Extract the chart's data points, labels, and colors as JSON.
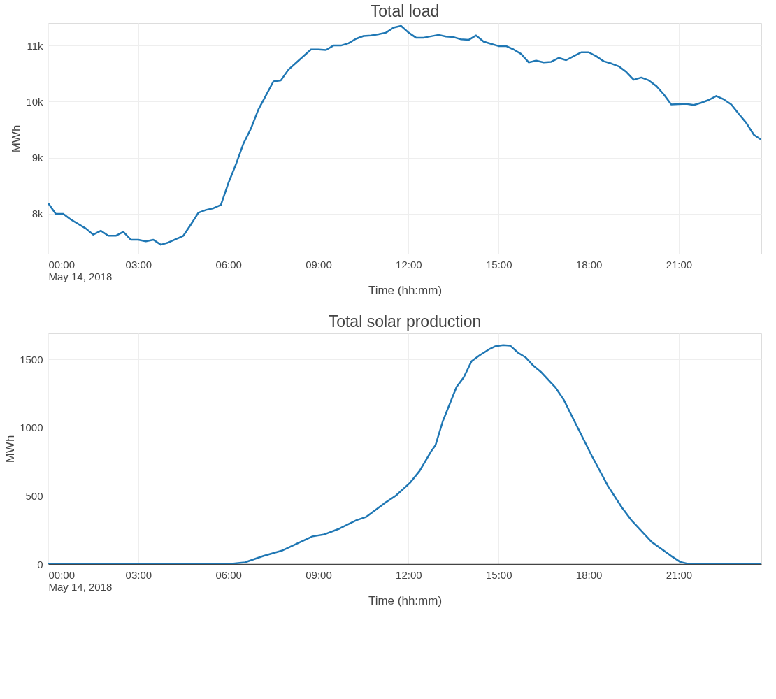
{
  "chart_data": [
    {
      "type": "line",
      "title": "Total load",
      "xlabel": "Time (hh:mm)",
      "ylabel": "MWh",
      "grid": true,
      "line_style": "solid",
      "xlim": [
        0,
        23.75
      ],
      "ylim": [
        7290,
        11400
      ],
      "xticks": [
        {
          "value": 0,
          "label": "00:00\nMay 14, 2018"
        },
        {
          "value": 3,
          "label": "03:00"
        },
        {
          "value": 6,
          "label": "06:00"
        },
        {
          "value": 9,
          "label": "09:00"
        },
        {
          "value": 12,
          "label": "12:00"
        },
        {
          "value": 15,
          "label": "15:00"
        },
        {
          "value": 18,
          "label": "18:00"
        },
        {
          "value": 21,
          "label": "21:00"
        }
      ],
      "yticks": [
        {
          "value": 8000,
          "label": "8k"
        },
        {
          "value": 9000,
          "label": "9k"
        },
        {
          "value": 10000,
          "label": "10k"
        },
        {
          "value": 11000,
          "label": "11k"
        }
      ],
      "series": [
        {
          "color": "#1f77b4",
          "x": [
            0,
            0.25,
            0.5,
            0.75,
            1.25,
            1.5,
            1.75,
            2,
            2.25,
            2.5,
            2.75,
            3,
            3.25,
            3.5,
            3.75,
            4,
            4.5,
            4.75,
            5,
            5.25,
            5.5,
            5.75,
            6,
            6.25,
            6.5,
            6.75,
            7,
            7.25,
            7.5,
            7.75,
            8,
            8.25,
            8.75,
            9,
            9.25,
            9.5,
            9.75,
            10,
            10.25,
            10.5,
            10.75,
            11,
            11.25,
            11.5,
            11.75,
            12,
            12.25,
            12.5,
            13,
            13.25,
            13.5,
            13.75,
            14,
            14.25,
            14.5,
            14.75,
            15,
            15.25,
            15.5,
            15.75,
            16,
            16.25,
            16.5,
            16.75,
            17,
            17.25,
            17.5,
            17.75,
            18,
            18.25,
            18.5,
            18.75,
            19,
            19.25,
            19.5,
            19.75,
            20,
            20.25,
            20.5,
            20.75,
            21.25,
            21.5,
            21.75,
            22,
            22.25,
            22.5,
            22.75,
            23,
            23.25,
            23.5,
            23.75
          ],
          "values": [
            8190,
            8000,
            8000,
            7900,
            7740,
            7630,
            7700,
            7610,
            7610,
            7680,
            7540,
            7540,
            7510,
            7540,
            7450,
            7490,
            7610,
            7810,
            8020,
            8070,
            8100,
            8160,
            8550,
            8880,
            9250,
            9520,
            9860,
            10110,
            10360,
            10380,
            10570,
            10690,
            10930,
            10930,
            10920,
            11000,
            11000,
            11040,
            11120,
            11170,
            11180,
            11200,
            11230,
            11320,
            11350,
            11230,
            11140,
            11140,
            11190,
            11160,
            11150,
            11110,
            11100,
            11180,
            11070,
            11030,
            10990,
            10990,
            10930,
            10850,
            10700,
            10730,
            10700,
            10710,
            10780,
            10740,
            10810,
            10880,
            10880,
            10810,
            10720,
            10680,
            10630,
            10530,
            10390,
            10430,
            10380,
            10280,
            10130,
            9950,
            9960,
            9940,
            9980,
            10030,
            10100,
            10040,
            9950,
            9780,
            9620,
            9410,
            9320
          ]
        }
      ]
    },
    {
      "type": "line",
      "title": "Total solar production",
      "xlabel": "Time (hh:mm)",
      "ylabel": "MWh",
      "grid": true,
      "line_style": "solid",
      "xlim": [
        0,
        23.75
      ],
      "ylim": [
        0,
        1690
      ],
      "xticks": [
        {
          "value": 0,
          "label": "00:00\nMay 14, 2018"
        },
        {
          "value": 3,
          "label": "03:00"
        },
        {
          "value": 6,
          "label": "06:00"
        },
        {
          "value": 9,
          "label": "09:00"
        },
        {
          "value": 12,
          "label": "12:00"
        },
        {
          "value": 15,
          "label": "15:00"
        },
        {
          "value": 18,
          "label": "18:00"
        },
        {
          "value": 21,
          "label": "21:00"
        }
      ],
      "yticks": [
        0,
        500,
        1000,
        1500
      ],
      "series": [
        {
          "color": "#1f77b4",
          "x": [
            0,
            3,
            6,
            6.55,
            7.17,
            7.8,
            8.25,
            8.8,
            9.2,
            9.7,
            10.27,
            10.58,
            11.2,
            11.58,
            12.05,
            12.37,
            12.75,
            12.9,
            13.14,
            13.37,
            13.6,
            13.84,
            14.1,
            14.37,
            14.53,
            14.7,
            14.88,
            15.15,
            15.39,
            15.65,
            15.89,
            16.16,
            16.4,
            16.9,
            17.17,
            17.6,
            18.1,
            18.64,
            19.1,
            19.42,
            20.1,
            20.74,
            21.05,
            21.35,
            22,
            23,
            23.75
          ],
          "values": [
            0,
            0,
            0,
            13,
            60,
            100,
            147,
            203,
            218,
            260,
            322,
            345,
            446,
            502,
            596,
            683,
            825,
            872,
            1046,
            1173,
            1298,
            1369,
            1487,
            1530,
            1552,
            1576,
            1595,
            1604,
            1600,
            1548,
            1516,
            1453,
            1410,
            1292,
            1204,
            1014,
            795,
            573,
            416,
            322,
            162,
            61,
            16,
            0,
            0,
            0,
            0
          ]
        }
      ]
    }
  ]
}
